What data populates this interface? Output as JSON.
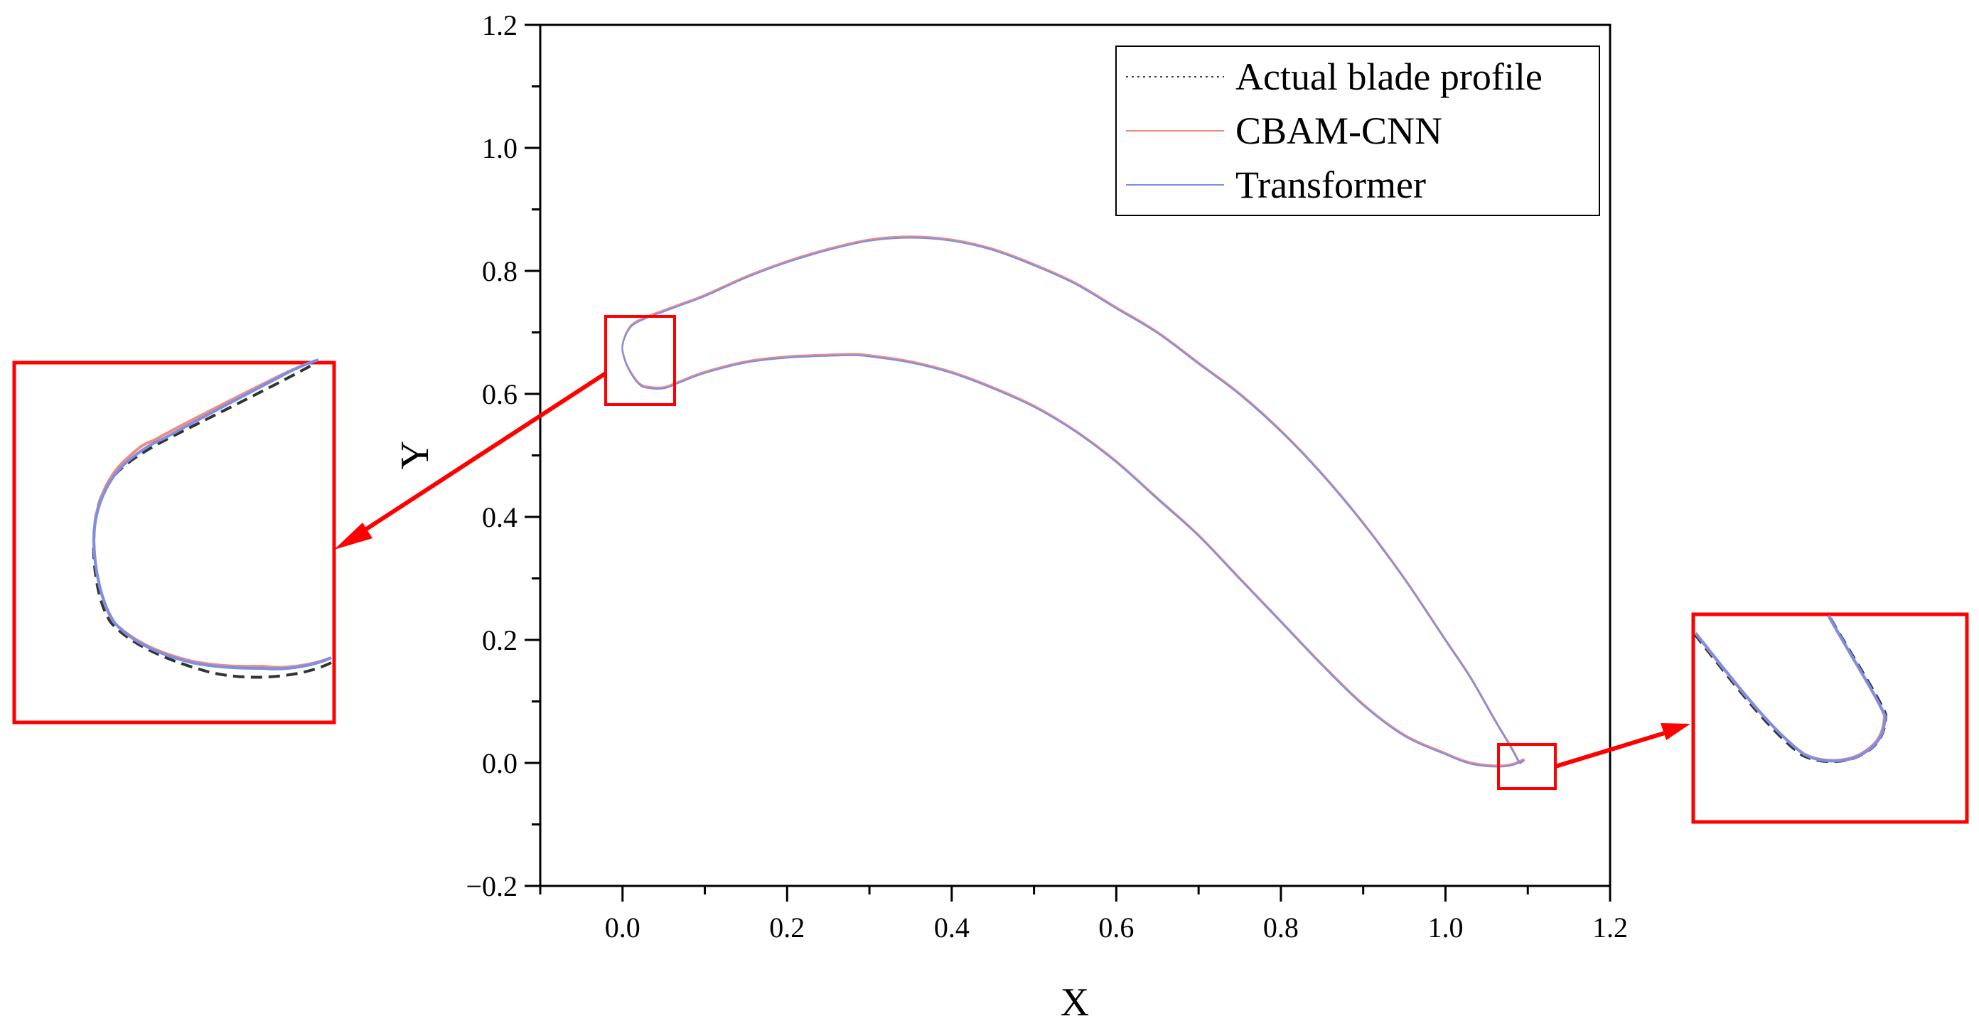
{
  "chart_data": {
    "type": "line",
    "xlabel": "X",
    "ylabel": "Y",
    "xlim": [
      -0.1,
      1.2
    ],
    "ylim": [
      -0.2,
      1.2
    ],
    "x_ticks": [
      {
        "value": 0.0,
        "label": "0.0"
      },
      {
        "value": 0.2,
        "label": "0.2"
      },
      {
        "value": 0.4,
        "label": "0.4"
      },
      {
        "value": 0.6,
        "label": "0.6"
      },
      {
        "value": 0.8,
        "label": "0.8"
      },
      {
        "value": 1.0,
        "label": "1.0"
      },
      {
        "value": 1.2,
        "label": "1.2"
      }
    ],
    "y_ticks": [
      {
        "value": -0.2,
        "label": "−0.2"
      },
      {
        "value": 0.0,
        "label": "0.0"
      },
      {
        "value": 0.2,
        "label": "0.2"
      },
      {
        "value": 0.4,
        "label": "0.4"
      },
      {
        "value": 0.6,
        "label": "0.6"
      },
      {
        "value": 0.8,
        "label": "0.8"
      },
      {
        "value": 1.0,
        "label": "1.0"
      },
      {
        "value": 1.2,
        "label": "1.2"
      }
    ],
    "grid": false,
    "legend_position": "top-right",
    "profile": {
      "x": [
        1.09,
        1.08,
        1.06,
        1.03,
        1.0,
        0.95,
        0.9,
        0.85,
        0.8,
        0.75,
        0.7,
        0.65,
        0.6,
        0.55,
        0.5,
        0.45,
        0.4,
        0.35,
        0.3,
        0.25,
        0.2,
        0.15,
        0.1,
        0.07,
        0.05,
        0.03,
        0.01,
        0.0,
        0.003,
        0.01,
        0.02,
        0.03,
        0.05,
        0.07,
        0.1,
        0.15,
        0.2,
        0.25,
        0.28,
        0.3,
        0.35,
        0.4,
        0.45,
        0.5,
        0.55,
        0.6,
        0.65,
        0.7,
        0.75,
        0.8,
        0.85,
        0.9,
        0.95,
        1.0,
        1.03,
        1.06,
        1.08,
        1.095,
        1.09
      ],
      "y": [
        0.0,
        0.025,
        0.07,
        0.14,
        0.2,
        0.3,
        0.39,
        0.47,
        0.54,
        0.6,
        0.65,
        0.7,
        0.74,
        0.78,
        0.81,
        0.835,
        0.85,
        0.855,
        0.85,
        0.835,
        0.815,
        0.79,
        0.76,
        0.745,
        0.735,
        0.725,
        0.71,
        0.68,
        0.655,
        0.635,
        0.617,
        0.611,
        0.61,
        0.62,
        0.635,
        0.652,
        0.66,
        0.663,
        0.664,
        0.662,
        0.652,
        0.635,
        0.61,
        0.58,
        0.54,
        0.49,
        0.43,
        0.37,
        0.3,
        0.23,
        0.16,
        0.095,
        0.045,
        0.015,
        0.0,
        -0.005,
        -0.003,
        0.005,
        0.0
      ]
    },
    "series": [
      {
        "name": "Actual blade profile",
        "color": "#444444",
        "style": "dotted"
      },
      {
        "name": "CBAM-CNN",
        "color": "#f08a7e",
        "style": "solid"
      },
      {
        "name": "Transformer",
        "color": "#7b8fe6",
        "style": "solid"
      }
    ],
    "zoom_boxes": [
      {
        "name": "leading-edge",
        "xlim": [
          -0.02,
          0.06
        ],
        "ylim": [
          0.59,
          0.725
        ]
      },
      {
        "name": "trailing-edge",
        "xlim": [
          1.065,
          1.13
        ],
        "ylim": [
          -0.04,
          0.03
        ]
      }
    ],
    "highlight_color": "#ff0000"
  }
}
